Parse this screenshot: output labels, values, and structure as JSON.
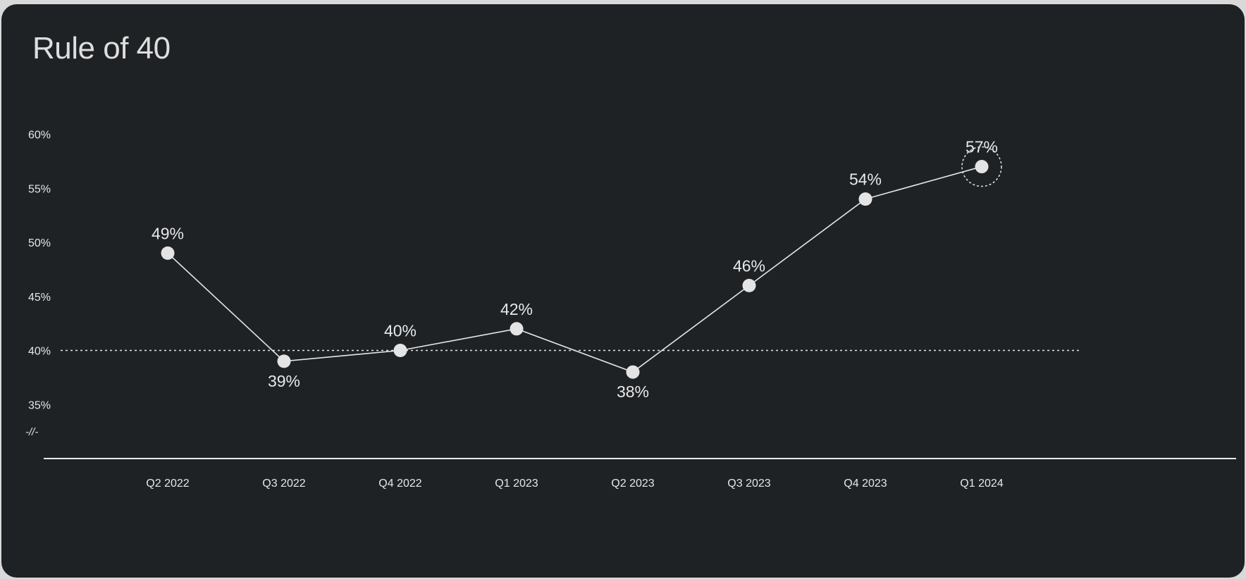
{
  "title": "Rule of 40",
  "chart_data": {
    "type": "line",
    "title": "Rule of 40",
    "xlabel": "",
    "ylabel": "",
    "categories": [
      "Q2 2022",
      "Q3 2022",
      "Q4 2022",
      "Q1 2023",
      "Q2 2023",
      "Q3 2023",
      "Q4 2023",
      "Q1 2024"
    ],
    "series": [
      {
        "values": [
          49,
          39,
          40,
          42,
          38,
          46,
          54,
          57
        ],
        "data_labels": [
          "49%",
          "39%",
          "40%",
          "42%",
          "38%",
          "46%",
          "54%",
          "57%"
        ],
        "label_below": [
          false,
          true,
          false,
          false,
          true,
          false,
          false,
          false
        ]
      }
    ],
    "yticks": [
      35,
      40,
      45,
      50,
      55,
      60
    ],
    "ytick_labels": [
      "35%",
      "40%",
      "45%",
      "50%",
      "55%",
      "60%"
    ],
    "ylim": [
      35,
      60
    ],
    "reference_line": 40,
    "axis_break_mark": "-//-",
    "highlighted_point": "Q1 2024",
    "grid": false,
    "colors": {
      "background": "#1f2225",
      "line": "#e6e6e6",
      "text": "#e6e6e6"
    }
  }
}
